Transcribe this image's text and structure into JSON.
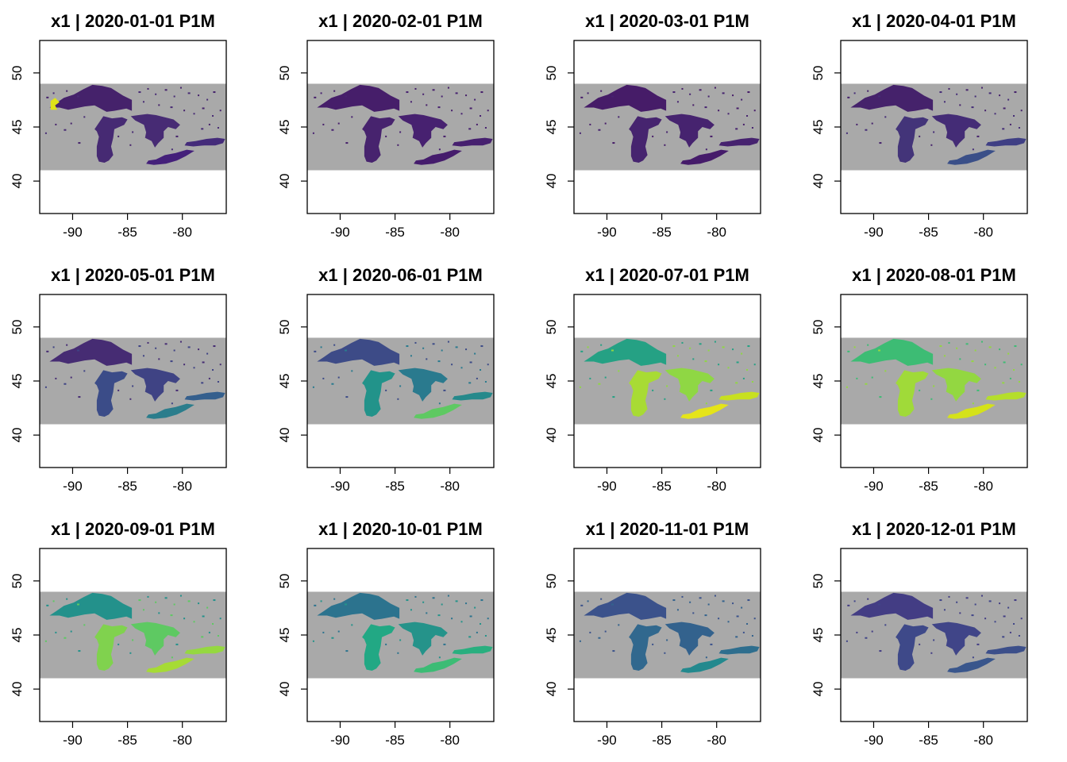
{
  "figure": {
    "panels": [
      {
        "title": "x1 | 2020-01-01 P1M",
        "palette": {
          "superior": "#45226b",
          "michigan": "#462a73",
          "huron": "#472b74",
          "erie": "#44207a",
          "ontario": "#442b7a",
          "hotspot": "#dfe318"
        }
      },
      {
        "title": "x1 | 2020-02-01 P1M",
        "palette": {
          "superior": "#461e6a",
          "michigan": "#47236e",
          "huron": "#472170",
          "erie": "#451c6c",
          "ontario": "#46206f"
        }
      },
      {
        "title": "x1 | 2020-03-01 P1M",
        "palette": {
          "superior": "#461c68",
          "michigan": "#46246f",
          "huron": "#46236f",
          "erie": "#451b6a",
          "ontario": "#46226f"
        }
      },
      {
        "title": "x1 | 2020-04-01 P1M",
        "palette": {
          "superior": "#45226b",
          "michigan": "#433479",
          "huron": "#442c76",
          "erie": "#3a4f88",
          "ontario": "#3f3f84"
        }
      },
      {
        "title": "x1 | 2020-05-01 P1M",
        "palette": {
          "superior": "#462c73",
          "michigan": "#3b4c88",
          "huron": "#3f4384",
          "erie": "#2b7d8c",
          "ontario": "#345f8d"
        }
      },
      {
        "title": "x1 | 2020-06-01 P1M",
        "palette": {
          "superior": "#3d4b87",
          "michigan": "#22938a",
          "huron": "#2a7a8e",
          "erie": "#5ec962",
          "ontario": "#25898b"
        }
      },
      {
        "title": "x1 | 2020-07-01 P1M",
        "palette": {
          "superior": "#25a184",
          "michigan": "#a8db34",
          "huron": "#8fd744",
          "erie": "#e5e419",
          "ontario": "#c8e020"
        }
      },
      {
        "title": "x1 | 2020-08-01 P1M",
        "palette": {
          "superior": "#3dbc74",
          "michigan": "#a0da39",
          "huron": "#93d741",
          "erie": "#d5e21a",
          "ontario": "#b5de2b"
        }
      },
      {
        "title": "x1 | 2020-09-01 P1M",
        "palette": {
          "superior": "#23918b",
          "michigan": "#80d24e",
          "huron": "#5ec962",
          "erie": "#a6db35",
          "ontario": "#95d840"
        }
      },
      {
        "title": "x1 | 2020-10-01 P1M",
        "palette": {
          "superior": "#2c738e",
          "michigan": "#22a884",
          "huron": "#25938a",
          "erie": "#3cbc75",
          "ontario": "#29af7f"
        }
      },
      {
        "title": "x1 | 2020-11-01 P1M",
        "palette": {
          "superior": "#3b528b",
          "michigan": "#31688e",
          "huron": "#33628d",
          "erie": "#23898e",
          "ontario": "#2e6e8e"
        }
      },
      {
        "title": "x1 | 2020-12-01 P1M",
        "palette": {
          "superior": "#433d84",
          "michigan": "#3e4989",
          "huron": "#404588",
          "erie": "#39568c",
          "ontario": "#3c4f8a"
        }
      }
    ],
    "x_ticks": [
      "-90",
      "-85",
      "-80"
    ],
    "y_ticks": [
      "40",
      "45",
      "50"
    ],
    "colors": {
      "land": "#a9a9a9",
      "frame": "#000000",
      "background": "#ffffff"
    }
  },
  "map_data": {
    "x_tick_values": [
      -90,
      -85,
      -80
    ],
    "y_tick_values": [
      40,
      45,
      50
    ],
    "xlim": [
      -93,
      -76
    ],
    "ylim": [
      37,
      53
    ],
    "raster_extent": {
      "lon": [
        -93,
        -76
      ],
      "lat": [
        41,
        49
      ]
    },
    "lakes": {
      "superior": [
        [
          -92.1,
          46.8
        ],
        [
          -91.5,
          47.2
        ],
        [
          -90.8,
          47.7
        ],
        [
          -89.9,
          48.0
        ],
        [
          -89.0,
          48.5
        ],
        [
          -88.2,
          48.9
        ],
        [
          -87.3,
          48.8
        ],
        [
          -86.5,
          48.6
        ],
        [
          -85.4,
          47.9
        ],
        [
          -84.6,
          47.5
        ],
        [
          -84.6,
          46.5
        ],
        [
          -85.1,
          46.7
        ],
        [
          -86.2,
          46.5
        ],
        [
          -86.9,
          46.4
        ],
        [
          -88.0,
          47.0
        ],
        [
          -88.9,
          46.9
        ],
        [
          -90.4,
          46.6
        ],
        [
          -91.2,
          46.8
        ]
      ],
      "michigan": [
        [
          -87.2,
          46.0
        ],
        [
          -86.4,
          45.8
        ],
        [
          -85.5,
          45.9
        ],
        [
          -85.0,
          45.7
        ],
        [
          -85.3,
          45.2
        ],
        [
          -86.2,
          44.8
        ],
        [
          -86.3,
          44.0
        ],
        [
          -86.5,
          43.2
        ],
        [
          -86.3,
          42.4
        ],
        [
          -86.7,
          41.9
        ],
        [
          -87.1,
          41.7
        ],
        [
          -87.6,
          41.8
        ],
        [
          -87.8,
          42.3
        ],
        [
          -87.8,
          43.2
        ],
        [
          -87.6,
          44.1
        ],
        [
          -87.8,
          44.6
        ],
        [
          -88.0,
          44.8
        ],
        [
          -87.6,
          45.4
        ]
      ],
      "huron": [
        [
          -84.7,
          46.0
        ],
        [
          -84.0,
          46.1
        ],
        [
          -83.2,
          46.2
        ],
        [
          -82.4,
          46.1
        ],
        [
          -81.6,
          45.9
        ],
        [
          -80.8,
          45.7
        ],
        [
          -80.2,
          45.2
        ],
        [
          -80.6,
          44.8
        ],
        [
          -81.3,
          45.0
        ],
        [
          -81.7,
          44.6
        ],
        [
          -81.7,
          44.0
        ],
        [
          -82.2,
          43.5
        ],
        [
          -82.5,
          43.1
        ],
        [
          -82.8,
          43.7
        ],
        [
          -83.4,
          44.0
        ],
        [
          -83.3,
          44.5
        ],
        [
          -83.5,
          45.2
        ],
        [
          -84.3,
          45.6
        ]
      ],
      "erie": [
        [
          -83.3,
          41.6
        ],
        [
          -82.6,
          41.5
        ],
        [
          -81.5,
          41.6
        ],
        [
          -80.5,
          41.9
        ],
        [
          -79.7,
          42.3
        ],
        [
          -78.9,
          42.8
        ],
        [
          -79.6,
          42.9
        ],
        [
          -80.6,
          42.6
        ],
        [
          -81.6,
          42.4
        ],
        [
          -82.4,
          42.0
        ],
        [
          -83.1,
          41.9
        ]
      ],
      "ontario": [
        [
          -79.8,
          43.3
        ],
        [
          -79.0,
          43.2
        ],
        [
          -78.0,
          43.3
        ],
        [
          -77.0,
          43.3
        ],
        [
          -76.3,
          43.5
        ],
        [
          -76.1,
          43.9
        ],
        [
          -76.8,
          44.0
        ],
        [
          -77.8,
          43.9
        ],
        [
          -78.8,
          43.7
        ],
        [
          -79.6,
          43.6
        ]
      ],
      "hotspot": [
        [
          -92.0,
          46.6
        ],
        [
          -91.4,
          46.6
        ],
        [
          -91.6,
          47.0
        ],
        [
          -91.2,
          47.3
        ],
        [
          -91.6,
          47.7
        ],
        [
          -92.0,
          47.4
        ]
      ]
    },
    "ponds": [
      [
        -84.0,
        48.3
      ],
      [
        -83.2,
        48.6
      ],
      [
        -82.5,
        48.1
      ],
      [
        -81.6,
        48.5
      ],
      [
        -80.8,
        47.9
      ],
      [
        -80.2,
        48.7
      ],
      [
        -79.5,
        48.2
      ],
      [
        -78.6,
        48.0
      ],
      [
        -77.8,
        47.6
      ],
      [
        -77.2,
        48.3
      ],
      [
        -83.6,
        47.4
      ],
      [
        -82.2,
        47.1
      ],
      [
        -81.1,
        46.9
      ],
      [
        -79.9,
        46.6
      ],
      [
        -79.0,
        46.3
      ],
      [
        -78.2,
        46.8
      ],
      [
        -77.3,
        46.1
      ],
      [
        -76.6,
        46.6
      ],
      [
        -89.6,
        47.9
      ],
      [
        -90.6,
        48.4
      ],
      [
        -91.8,
        48.2
      ],
      [
        -92.4,
        47.8
      ],
      [
        -89.0,
        46.0
      ],
      [
        -90.2,
        45.4
      ],
      [
        -90.8,
        44.8
      ],
      [
        -91.6,
        45.3
      ],
      [
        -92.5,
        44.5
      ],
      [
        -89.5,
        43.6
      ],
      [
        -84.6,
        44.6
      ],
      [
        -84.8,
        43.4
      ],
      [
        -78.3,
        44.9
      ],
      [
        -77.6,
        45.3
      ],
      [
        -76.8,
        45.0
      ],
      [
        -80.6,
        44.2
      ],
      [
        -81.0,
        43.0
      ],
      [
        -85.9,
        44.2
      ]
    ]
  }
}
